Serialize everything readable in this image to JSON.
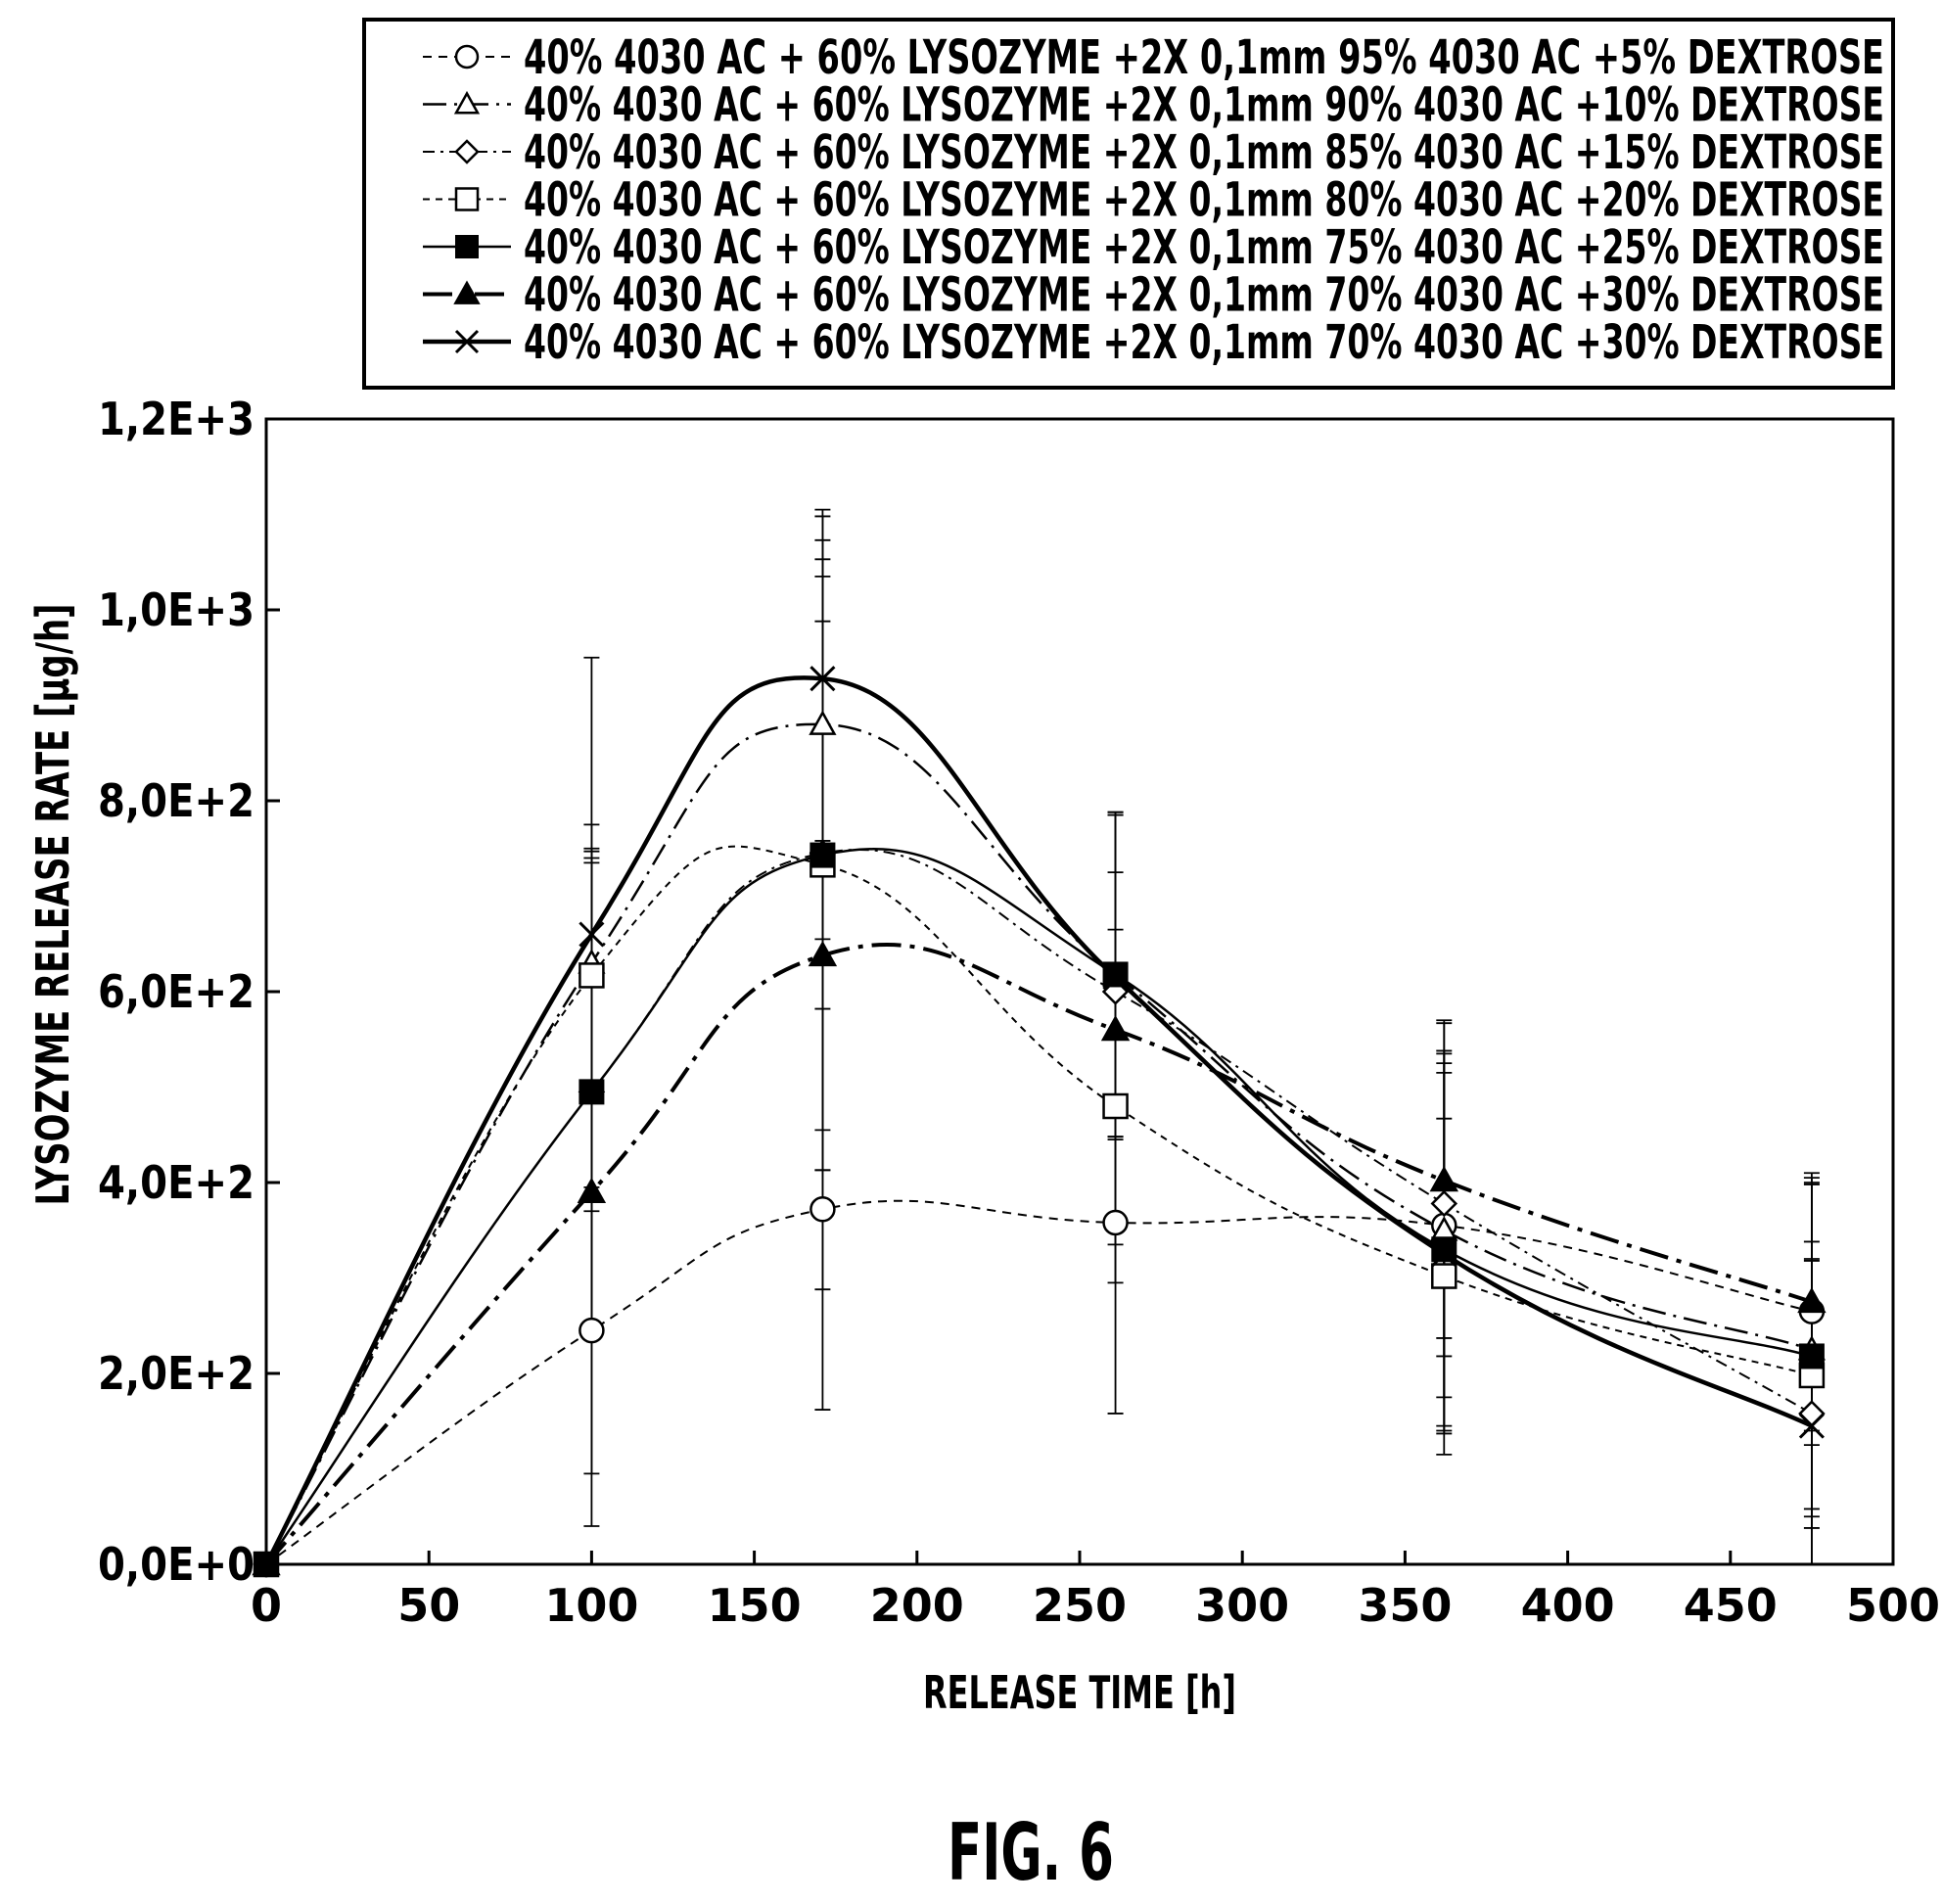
{
  "chart_data": {
    "type": "line",
    "xlabel": "RELEASE TIME [h]",
    "ylabel": "LYSOZYME RELEASE RATE [μg/h]",
    "figure_label": "FIG. 6",
    "xlim": [
      0,
      500
    ],
    "ylim": [
      0,
      1200
    ],
    "x_ticks": [
      0,
      50,
      100,
      150,
      200,
      250,
      300,
      350,
      400,
      450,
      500
    ],
    "x_tick_labels": [
      "0",
      "50",
      "100",
      "150",
      "200",
      "250",
      "300",
      "350",
      "400",
      "450",
      "500"
    ],
    "y_ticks": [
      0,
      200,
      400,
      600,
      800,
      1000,
      1200
    ],
    "y_tick_labels": [
      "0,0E+0",
      "2,0E+2",
      "4,0E+2",
      "6,0E+2",
      "8,0E+2",
      "1,0E+3",
      "1,2E+3"
    ],
    "grid": false,
    "legend_position": "top, above plot",
    "x": [
      0,
      100,
      171,
      261,
      362,
      475
    ],
    "series": [
      {
        "name": "40% 4030 AC + 60% LYSOZYME +2X 0,1mm 95% 4030 AC +5% DEXTROSE",
        "marker": "circle-open",
        "dash": "short-dash",
        "values": [
          0,
          245,
          372,
          358,
          355,
          265
        ],
        "error": [
          0,
          150,
          210,
          200,
          215,
          140
        ]
      },
      {
        "name": "40% 4030 AC + 60% LYSOZYME +2X 0,1mm 90% 4030 AC +10% DEXTROSE",
        "marker": "triangle-open",
        "dash": "dash-dot",
        "values": [
          0,
          630,
          880,
          618,
          350,
          225
        ],
        "error": [
          0,
          145,
          225,
          170,
          175,
          175
        ]
      },
      {
        "name": "40% 4030 AC + 60% LYSOZYME +2X 0,1mm 85% 4030 AC +15% DEXTROSE",
        "marker": "diamond-open",
        "dash": "fine-dash-dot",
        "values": [
          0,
          495,
          745,
          600,
          378,
          158
        ],
        "error": [
          0,
          255,
          290,
          125,
          160,
          160
        ]
      },
      {
        "name": "40% 4030 AC + 60% LYSOZYME +2X 0,1mm 80% 4030 AC +20% DEXTROSE",
        "marker": "square-open",
        "dash": "fine-dash",
        "values": [
          0,
          617,
          733,
          480,
          302,
          198
        ],
        "error": [
          0,
          130,
          320,
          185,
          165,
          140
        ]
      },
      {
        "name": "40% 4030 AC + 60% LYSOZYME +2X 0,1mm 75% 4030 AC +25% DEXTROSE",
        "marker": "square-filled",
        "dash": "solid-thin",
        "values": [
          0,
          495,
          743,
          618,
          330,
          218
        ],
        "error": [
          0,
          240,
          330,
          170,
          185,
          180
        ]
      },
      {
        "name": "40% 4030 AC + 60% LYSOZYME +2X 0,1mm 70% 4030 AC +30% DEXTROSE",
        "marker": "triangle-filled",
        "dash": "long-dash-dot",
        "values": [
          0,
          390,
          638,
          560,
          402,
          275
        ],
        "error": [
          0,
          350,
          350,
          225,
          165,
          135
        ]
      },
      {
        "name": "40% 4030 AC + 60% LYSOZYME +2X 0,1mm 70% 4030 AC +30% DEXTROSE",
        "marker": "cross",
        "dash": "solid-thick",
        "values": [
          0,
          660,
          928,
          615,
          325,
          145
        ],
        "error": [
          0,
          290,
          170,
          170,
          210,
          175
        ]
      }
    ]
  }
}
